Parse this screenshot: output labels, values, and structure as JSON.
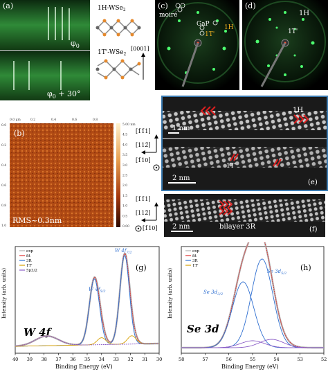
{
  "panel_a": {
    "label": "(a)",
    "top_text": "φ",
    "top_sub": "0",
    "bottom_text": "φ",
    "bottom_sub": "0",
    "bottom_suffix": " + 30°"
  },
  "structure": {
    "label_1h": "1H-WSe",
    "label_1h_sub": "2",
    "label_1t": "1T'-WSe",
    "label_1t_sub": "2",
    "direction": "[0001]"
  },
  "panel_c": {
    "label": "(c)",
    "moire": "moiré",
    "gap": "GaP",
    "h1": "1H",
    "t1": "1T'"
  },
  "panel_d": {
    "label": "(d)",
    "h1": "1H",
    "t1": "1T'"
  },
  "panel_b": {
    "label": "(b)",
    "rms": "RMS~0.3nm",
    "top_axis": [
      "0.0 μm",
      "0.2",
      "0.4",
      "0.6",
      "0.8"
    ],
    "left_axis": [
      "0.0",
      "0.2",
      "0.4",
      "0.6",
      "0.8",
      "1.0"
    ],
    "colorbar": [
      "5.00 nm",
      "4.5",
      "4.0",
      "3.5",
      "3.0",
      "2.5",
      "2.0",
      "1.5",
      "1.0",
      "0.5",
      "0.00"
    ]
  },
  "axes_1": {
    "top": "[1̄1̄1]",
    "mid": "[112̄]",
    "bot": "[1̄10]"
  },
  "panel_e": {
    "label": "(e)",
    "scale1": "1 nm",
    "h1": "1H",
    "scale2": "2 nm",
    "t1": "1T'"
  },
  "axes_2": {
    "top": "[1̄1̄1]",
    "mid": "[112̄]",
    "bot": "[1̄10]"
  },
  "panel_f": {
    "label": "(f)",
    "scale": "2 nm",
    "caption": "bilayer 3R"
  },
  "panel_g": {
    "label": "(g)",
    "big": "W 4f",
    "xlabel": "Binding Energy (eV)",
    "ylabel": "Intensity (arb. units)",
    "peak1": "W 4f",
    "peak1_sub": "7/2",
    "peak2": "W 4f",
    "peak2_sub": "5/2",
    "legend": [
      "exp",
      "fit",
      "3R",
      "1T'",
      "5p3/2"
    ],
    "ticks": [
      "40",
      "39",
      "38",
      "37",
      "36",
      "35",
      "34",
      "33",
      "32",
      "31",
      "30"
    ]
  },
  "panel_h": {
    "label": "(h)",
    "big": "Se 3d",
    "xlabel": "Binding Energy (eV)",
    "ylabel": "Intensity (arb. units)",
    "peak1": "Se 3d",
    "peak1_sub": "3/2",
    "peak2": "Se 3d",
    "peak2_sub": "5/2",
    "legend": [
      "exp",
      "fit",
      "3R",
      "1T'"
    ],
    "ticks": [
      "58",
      "57",
      "56",
      "55",
      "54",
      "53",
      "52"
    ]
  },
  "colors": {
    "legend_exp": "#b0b0b0",
    "legend_fit": "#e03030",
    "legend_3r": "#2f6fd0",
    "legend_1t": "#d8a000",
    "legend_5p": "#8a5cc6"
  }
}
